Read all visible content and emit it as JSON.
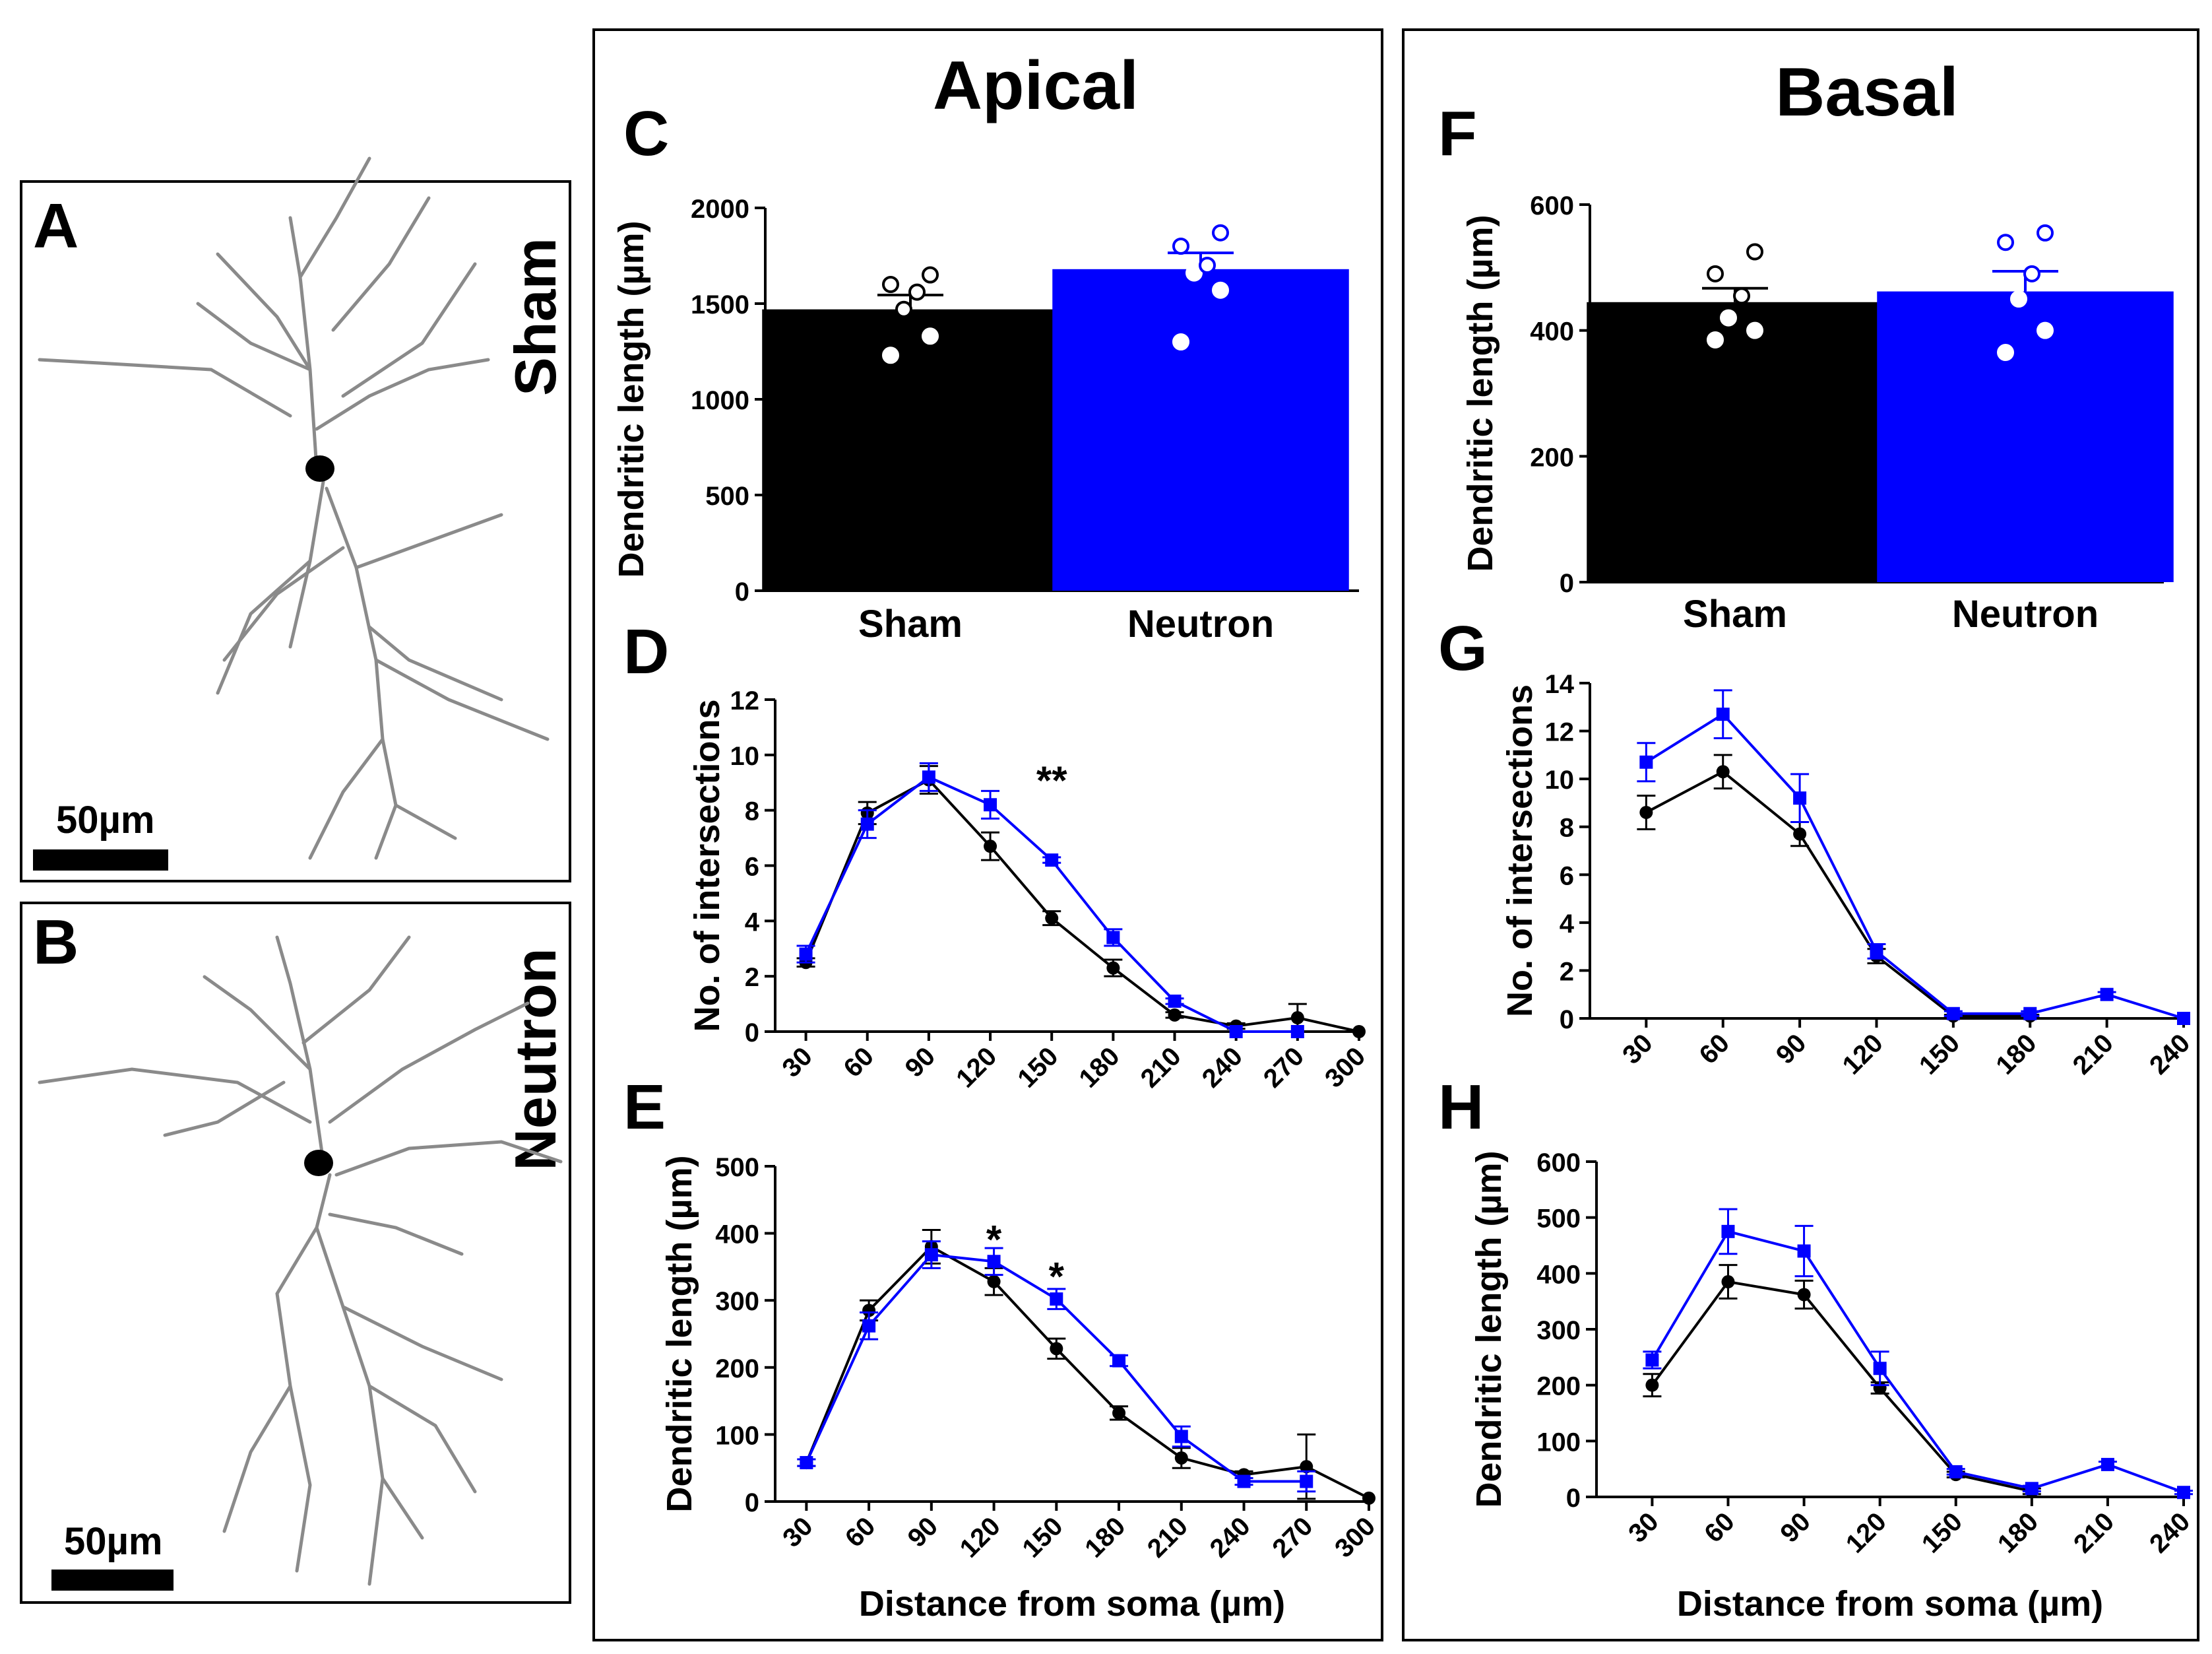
{
  "colors": {
    "sham": "#000000",
    "neutron": "#0000ff"
  },
  "panels": {
    "A": {
      "letter": "A",
      "condition": "Sham",
      "scale": "50µm"
    },
    "B": {
      "letter": "B",
      "condition": "Neutron",
      "scale": "50µm"
    },
    "C": {
      "letter": "C"
    },
    "D": {
      "letter": "D"
    },
    "E": {
      "letter": "E"
    },
    "F": {
      "letter": "F"
    },
    "G": {
      "letter": "G"
    },
    "H": {
      "letter": "H"
    }
  },
  "columns": {
    "apical": "Apical",
    "basal": "Basal"
  },
  "chart_data": [
    {
      "id": "C",
      "type": "bar",
      "categories": [
        "Sham",
        "Neutron"
      ],
      "ylabel": "Dendritic length (µm)",
      "ylim": [
        0,
        2000
      ],
      "yticks": [
        0,
        500,
        1000,
        1500,
        2000
      ],
      "values": [
        1470,
        1680
      ],
      "errors": [
        75,
        85
      ],
      "colors": [
        "#000000",
        "#0000ff"
      ],
      "points": [
        [
          1230,
          1330,
          1470,
          1560,
          1600,
          1650
        ],
        [
          1300,
          1570,
          1660,
          1700,
          1800,
          1870
        ]
      ]
    },
    {
      "id": "F",
      "type": "bar",
      "categories": [
        "Sham",
        "Neutron"
      ],
      "ylabel": "Dendritic length (µm)",
      "ylim": [
        0,
        600
      ],
      "yticks": [
        0,
        200,
        400,
        600
      ],
      "values": [
        445,
        462
      ],
      "errors": [
        22,
        32
      ],
      "colors": [
        "#000000",
        "#0000ff"
      ],
      "points": [
        [
          385,
          400,
          420,
          455,
          490,
          525
        ],
        [
          365,
          400,
          450,
          490,
          540,
          555
        ]
      ]
    },
    {
      "id": "D",
      "type": "line",
      "ylabel": "No. of intersections",
      "xlabel": "",
      "x": [
        30,
        60,
        90,
        120,
        150,
        180,
        210,
        240,
        270,
        300
      ],
      "xlim": [
        15,
        300
      ],
      "ylim": [
        0,
        12
      ],
      "yticks": [
        0,
        2,
        4,
        6,
        8,
        10,
        12
      ],
      "series": [
        {
          "name": "Sham",
          "values": [
            2.5,
            7.9,
            9.1,
            6.7,
            4.1,
            2.3,
            0.6,
            0.2,
            0.5,
            0.0
          ],
          "err": [
            0.15,
            0.4,
            0.5,
            0.5,
            0.25,
            0.3,
            0.1,
            0.1,
            0.5,
            0
          ],
          "color": "#000000",
          "marker": "circle"
        },
        {
          "name": "Neutron",
          "values": [
            2.8,
            7.5,
            9.2,
            8.2,
            6.2,
            3.4,
            1.1,
            0.0,
            0.0,
            null
          ],
          "err": [
            0.3,
            0.5,
            0.5,
            0.5,
            0.1,
            0.3,
            0.1,
            0,
            0,
            null
          ],
          "color": "#0000ff",
          "marker": "square"
        }
      ],
      "annotations": [
        {
          "x": 150,
          "y": 9.3,
          "text": "**"
        }
      ]
    },
    {
      "id": "E",
      "type": "line",
      "ylabel": "Dendritic length (µm)",
      "xlabel": "Distance from soma (µm)",
      "x": [
        30,
        60,
        90,
        120,
        150,
        180,
        210,
        240,
        270,
        300
      ],
      "xlim": [
        15,
        300
      ],
      "ylim": [
        0,
        500
      ],
      "yticks": [
        0,
        100,
        200,
        300,
        400,
        500
      ],
      "series": [
        {
          "name": "Sham",
          "values": [
            58,
            285,
            380,
            328,
            228,
            132,
            65,
            40,
            52,
            5
          ],
          "err": [
            5,
            15,
            25,
            20,
            15,
            10,
            15,
            5,
            48,
            0
          ],
          "color": "#000000",
          "marker": "circle"
        },
        {
          "name": "Neutron",
          "values": [
            58,
            262,
            368,
            358,
            302,
            210,
            97,
            30,
            30,
            null
          ],
          "err": [
            5,
            20,
            20,
            20,
            15,
            8,
            15,
            5,
            15,
            null
          ],
          "color": "#0000ff",
          "marker": "square"
        }
      ],
      "annotations": [
        {
          "x": 120,
          "y": 400,
          "text": "*"
        },
        {
          "x": 150,
          "y": 345,
          "text": "*"
        }
      ]
    },
    {
      "id": "G",
      "type": "line",
      "ylabel": "No. of intersections",
      "xlabel": "",
      "x": [
        30,
        60,
        90,
        120,
        150,
        180,
        210,
        240
      ],
      "xlim": [
        8,
        240
      ],
      "ylim": [
        0,
        14
      ],
      "yticks": [
        0,
        2,
        4,
        6,
        8,
        10,
        12,
        14
      ],
      "series": [
        {
          "name": "Sham",
          "values": [
            8.6,
            10.3,
            7.7,
            2.6,
            0.1,
            0.1,
            null,
            null
          ],
          "err": [
            0.7,
            0.7,
            0.5,
            0.3,
            0.05,
            0.05,
            null,
            null
          ],
          "color": "#000000",
          "marker": "circle"
        },
        {
          "name": "Neutron",
          "values": [
            10.7,
            12.7,
            9.2,
            2.8,
            0.2,
            0.2,
            1.0,
            0.0
          ],
          "err": [
            0.8,
            1.0,
            1.0,
            0.3,
            0.1,
            0.1,
            0.1,
            0
          ],
          "color": "#0000ff",
          "marker": "square"
        }
      ],
      "annotations": []
    },
    {
      "id": "H",
      "type": "line",
      "ylabel": "Dendritic length (µm)",
      "xlabel": "Distance from soma (µm)",
      "x": [
        30,
        60,
        90,
        120,
        150,
        180,
        210,
        240
      ],
      "xlim": [
        8,
        240
      ],
      "ylim": [
        0,
        600
      ],
      "yticks": [
        0,
        100,
        200,
        300,
        400,
        500,
        600
      ],
      "series": [
        {
          "name": "Sham",
          "values": [
            200,
            385,
            362,
            195,
            40,
            10,
            null,
            null
          ],
          "err": [
            20,
            30,
            25,
            10,
            5,
            5,
            null,
            null
          ],
          "color": "#000000",
          "marker": "circle"
        },
        {
          "name": "Neutron",
          "values": [
            245,
            475,
            440,
            230,
            45,
            15,
            58,
            8
          ],
          "err": [
            15,
            40,
            45,
            30,
            5,
            5,
            5,
            3
          ],
          "color": "#0000ff",
          "marker": "square"
        }
      ],
      "annotations": []
    }
  ]
}
